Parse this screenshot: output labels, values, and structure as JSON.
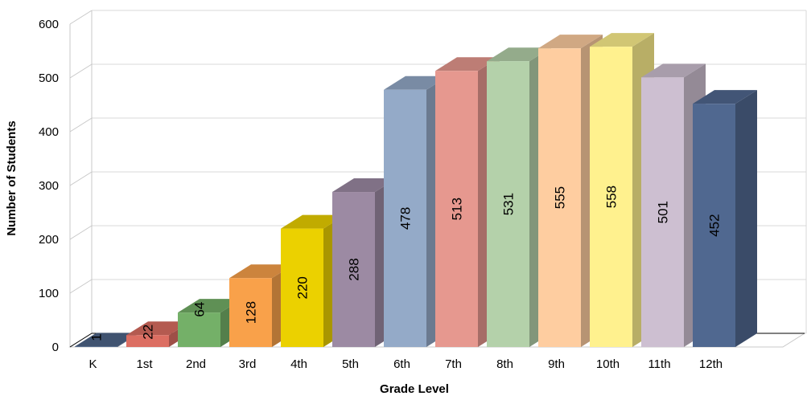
{
  "chart_data": {
    "type": "bar",
    "title": "",
    "xlabel": "Grade Level",
    "ylabel": "Number of Students",
    "categories": [
      "K",
      "1st",
      "2nd",
      "3rd",
      "4th",
      "5th",
      "6th",
      "7th",
      "8th",
      "9th",
      "10th",
      "11th",
      "12th"
    ],
    "values": [
      1,
      22,
      64,
      128,
      220,
      288,
      478,
      513,
      531,
      555,
      558,
      501,
      452
    ],
    "data_labels": [
      "1",
      "22",
      "64",
      "128",
      "220",
      "288",
      "478",
      "513",
      "531",
      "555",
      "558",
      "501",
      "452"
    ],
    "ylim": [
      0,
      600
    ],
    "yticks": [
      0,
      100,
      200,
      300,
      400,
      500,
      600
    ],
    "ytick_labels": [
      "0",
      "100",
      "200",
      "300",
      "400",
      "500",
      "600"
    ],
    "grid": "horizontal",
    "legend": "none",
    "style": "3d-bars",
    "colors": [
      "#4e6589",
      "#dc6e62",
      "#74b068",
      "#f9a14a",
      "#ebd100",
      "#9c8aa3",
      "#94aac8",
      "#e6988f",
      "#b4d1aa",
      "#fecda0",
      "#fff18e",
      "#cdbfd1",
      "#506890"
    ]
  }
}
